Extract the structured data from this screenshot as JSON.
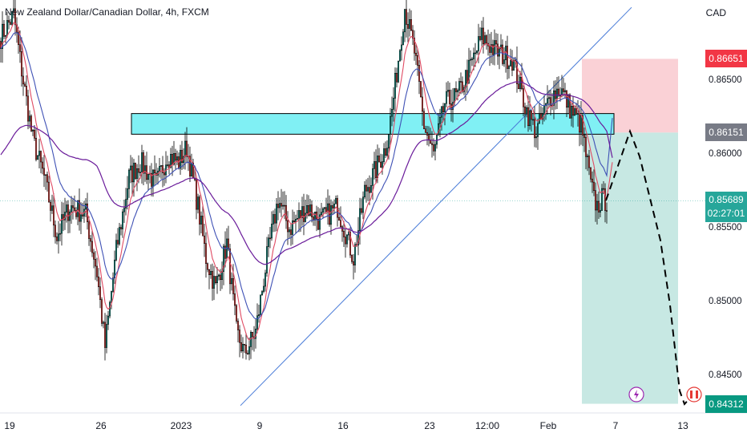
{
  "header": {
    "title": "New Zealand Dollar/Canadian Dollar, 4h, FXCM",
    "currency": "CAD"
  },
  "price_tags": {
    "stop": "0.86651",
    "entry": "0.86151",
    "current": "0.85689",
    "countdown": "02:27:01",
    "target": "0.84312"
  },
  "colors": {
    "up": "#26a69a",
    "down": "#ef5350",
    "candle_outline": "#000000",
    "zone": "#80f0f4",
    "stop_zone": "#f9c9cf",
    "target_zone": "#b9e2dc",
    "trendline": "#4a7cd8",
    "ma_fast": "#e04b63",
    "ma_mid": "#3f51b5",
    "ma_slow": "#6a1b9a",
    "stop_tag": "#f23645",
    "entry_tag": "#787b86",
    "current_tag": "#26a69a",
    "target_tag": "#089981"
  },
  "chart_data": {
    "type": "candlestick",
    "title": "New Zealand Dollar/Canadian Dollar, 4h, FXCM",
    "y_unit": "CAD",
    "ylim": [
      0.8425,
      0.8705
    ],
    "y_ticks": [
      0.865,
      0.86,
      0.855,
      0.85,
      0.845
    ],
    "y_tick_labels": [
      "0.86500",
      "0.86000",
      "0.85500",
      "0.85000",
      "0.84500"
    ],
    "x_tick_labels": [
      "19",
      "26",
      "2023",
      "9",
      "16",
      "23",
      "12:00",
      "Feb",
      "7",
      "13"
    ],
    "grid": false,
    "close_path": [
      [
        0,
        0.868
      ],
      [
        8,
        0.8695
      ],
      [
        14,
        0.865
      ],
      [
        20,
        0.861
      ],
      [
        27,
        0.8585
      ],
      [
        35,
        0.8545
      ],
      [
        43,
        0.8565
      ],
      [
        53,
        0.856
      ],
      [
        60,
        0.852
      ],
      [
        65,
        0.847
      ],
      [
        72,
        0.8535
      ],
      [
        80,
        0.8585
      ],
      [
        87,
        0.8595
      ],
      [
        97,
        0.858
      ],
      [
        104,
        0.86
      ],
      [
        111,
        0.8595
      ],
      [
        116,
        0.8605
      ],
      [
        123,
        0.8565
      ],
      [
        128,
        0.853
      ],
      [
        134,
        0.851
      ],
      [
        141,
        0.854
      ],
      [
        147,
        0.848
      ],
      [
        152,
        0.8465
      ],
      [
        159,
        0.848
      ],
      [
        166,
        0.853
      ],
      [
        173,
        0.857
      ],
      [
        180,
        0.855
      ],
      [
        191,
        0.8565
      ],
      [
        199,
        0.8555
      ],
      [
        210,
        0.8565
      ],
      [
        220,
        0.853
      ],
      [
        227,
        0.8575
      ],
      [
        234,
        0.859
      ],
      [
        240,
        0.8605
      ],
      [
        244,
        0.863
      ],
      [
        248,
        0.8665
      ],
      [
        252,
        0.87
      ],
      [
        258,
        0.867
      ],
      [
        264,
        0.862
      ],
      [
        270,
        0.86
      ],
      [
        277,
        0.8635
      ],
      [
        285,
        0.864
      ],
      [
        293,
        0.866
      ],
      [
        300,
        0.868
      ],
      [
        309,
        0.867
      ],
      [
        319,
        0.8665
      ],
      [
        328,
        0.863
      ],
      [
        334,
        0.8615
      ],
      [
        343,
        0.864
      ],
      [
        349,
        0.8645
      ],
      [
        356,
        0.863
      ],
      [
        362,
        0.862
      ],
      [
        365,
        0.86
      ],
      [
        368,
        0.858
      ],
      [
        370,
        0.857
      ],
      [
        372,
        0.8565
      ],
      [
        375,
        0.857
      ],
      [
        378,
        0.8569
      ]
    ],
    "series": [
      {
        "name": "",
        "type": "moving_average",
        "color": "#e04b63",
        "role": "fast"
      },
      {
        "name": "",
        "type": "moving_average",
        "color": "#3f51b5",
        "role": "mid"
      },
      {
        "name": "",
        "type": "moving_average",
        "color": "#6a1b9a",
        "role": "slow"
      }
    ],
    "annotations": {
      "resistance_zone": {
        "x_start": 82,
        "x_end": 383,
        "y_low": 0.8614,
        "y_high": 0.8628
      },
      "trendline": [
        [
          150,
          0.843
        ],
        [
          394,
          0.87
        ]
      ],
      "short_position": {
        "x_start": 363,
        "x_end": 423,
        "entry": 0.86151,
        "stop": 0.86651,
        "target": 0.84312
      },
      "projection_path": [
        [
          378,
          0.8569
        ],
        [
          393,
          0.8616
        ],
        [
          399,
          0.8599
        ],
        [
          412,
          0.8542
        ],
        [
          418,
          0.8498
        ],
        [
          424,
          0.844
        ],
        [
          427,
          0.8431
        ],
        [
          432,
          0.8437
        ]
      ],
      "event_icons": [
        "lightning-icon",
        "flag-canada-icon"
      ]
    }
  }
}
